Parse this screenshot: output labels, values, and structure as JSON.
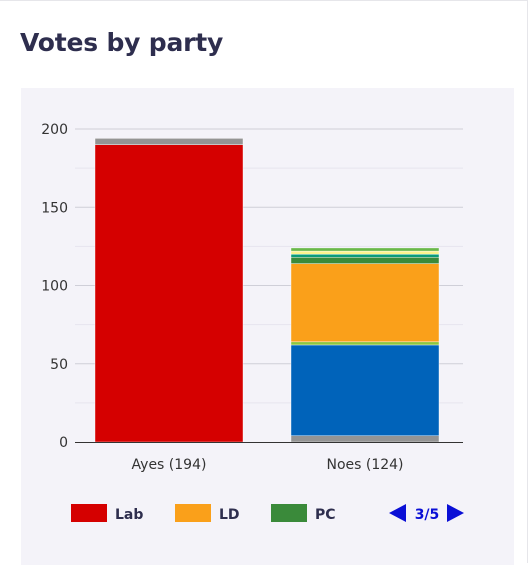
{
  "title": "Votes by party",
  "chart_data": {
    "type": "bar",
    "stacked": true,
    "categories": [
      "Ayes (194)",
      "Noes (124)"
    ],
    "ylim": [
      0,
      200
    ],
    "yticks": [
      0,
      50,
      100,
      150,
      200
    ],
    "grid": true,
    "series": [
      {
        "name": "Lab",
        "color": "#d50000",
        "values": [
          190,
          0
        ]
      },
      {
        "name": "",
        "color": "#949494",
        "values": [
          4,
          4
        ]
      },
      {
        "name": "",
        "color": "#0063ba",
        "values": [
          0,
          58
        ]
      },
      {
        "name": "",
        "color": "#8ec63f",
        "values": [
          0,
          2
        ]
      },
      {
        "name": "LD",
        "color": "#faa01a",
        "values": [
          0,
          50
        ]
      },
      {
        "name": "PC",
        "color": "#3a8a3a",
        "values": [
          0,
          4
        ]
      },
      {
        "name": "",
        "color": "#0b9c7a",
        "values": [
          0,
          2
        ]
      },
      {
        "name": "",
        "color": "#fdf38e",
        "values": [
          0,
          2
        ]
      },
      {
        "name": "",
        "color": "#6ab84a",
        "values": [
          0,
          2
        ]
      }
    ],
    "legend": {
      "position": "bottom",
      "page": "3/5",
      "items": [
        {
          "name": "Lab",
          "color": "#d50000"
        },
        {
          "name": "LD",
          "color": "#faa01a"
        },
        {
          "name": "PC",
          "color": "#3a8a3a"
        }
      ],
      "arrow_color": "#0a0fd6"
    }
  }
}
